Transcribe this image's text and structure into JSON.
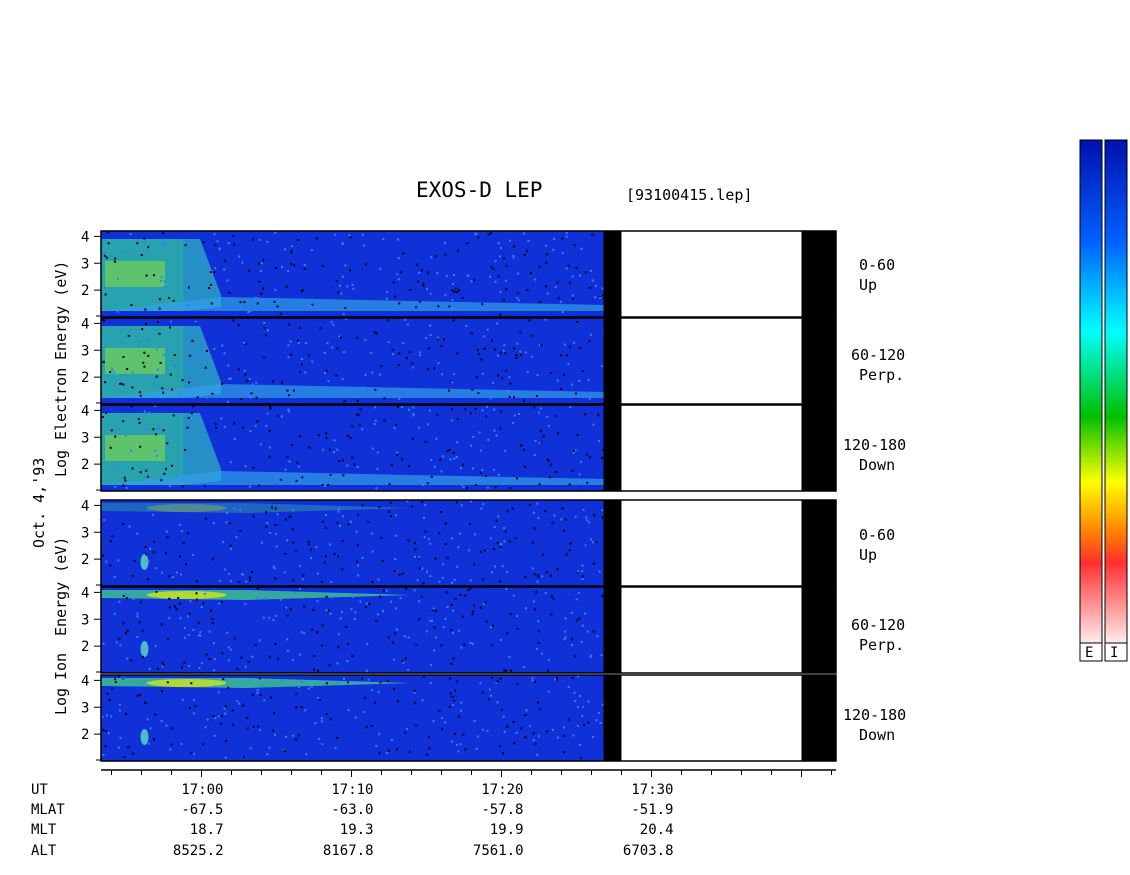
{
  "title": "EXOS-D LEP",
  "filename": "[93100415.lep]",
  "date_label": "Oct. 4,'93",
  "color_scale": {
    "stops": [
      "#ffe4e4",
      "#ff0000",
      "#ff8000",
      "#ffff00",
      "#00c000",
      "#00ffff",
      "#0060ff",
      "#0010c0"
    ],
    "labels": [
      "E",
      "I"
    ]
  },
  "electron_group": {
    "ylabel": [
      "Log",
      "Electron",
      "Energy (eV)"
    ],
    "panels": [
      {
        "angle": "0-60",
        "direction": "Up"
      },
      {
        "angle": "60-120",
        "direction": "Perp."
      },
      {
        "angle": "120-180",
        "direction": "Down"
      }
    ]
  },
  "ion_group": {
    "ylabel": [
      "Log",
      "Ion",
      "Energy (eV)"
    ],
    "panels": [
      {
        "angle": "0-60",
        "direction": "Up"
      },
      {
        "angle": "60-120",
        "direction": "Perp."
      },
      {
        "angle": "120-180",
        "direction": "Down"
      }
    ]
  },
  "chart_data": {
    "type": "heatmap",
    "title": "EXOS-D LEP",
    "x_axis": {
      "time_labels": [
        "17:00",
        "17:10",
        "17:20",
        "17:30"
      ],
      "label_minutes": [
        60,
        70,
        80,
        90
      ],
      "range_minutes": [
        53.3,
        102.3
      ]
    },
    "y_axis": {
      "ticks": [
        2,
        3,
        4
      ],
      "range": [
        1,
        4.2
      ]
    },
    "ephemeris": [
      {
        "name": "UT",
        "values": [
          "17:00",
          "17:10",
          "17:20",
          "17:30"
        ]
      },
      {
        "name": "MLAT",
        "values": [
          "-67.5",
          "-63.0",
          "-57.8",
          "-51.9"
        ]
      },
      {
        "name": "MLT",
        "values": [
          "18.7",
          "19.3",
          "19.9",
          "20.4"
        ]
      },
      {
        "name": "ALT",
        "values": [
          "8525.2",
          "8167.8",
          "7561.0",
          "6703.8"
        ]
      }
    ],
    "data_end_minute": 87,
    "gap_minutes": [
      [
        86.8,
        88.0
      ],
      [
        100.0,
        102.3
      ]
    ]
  }
}
